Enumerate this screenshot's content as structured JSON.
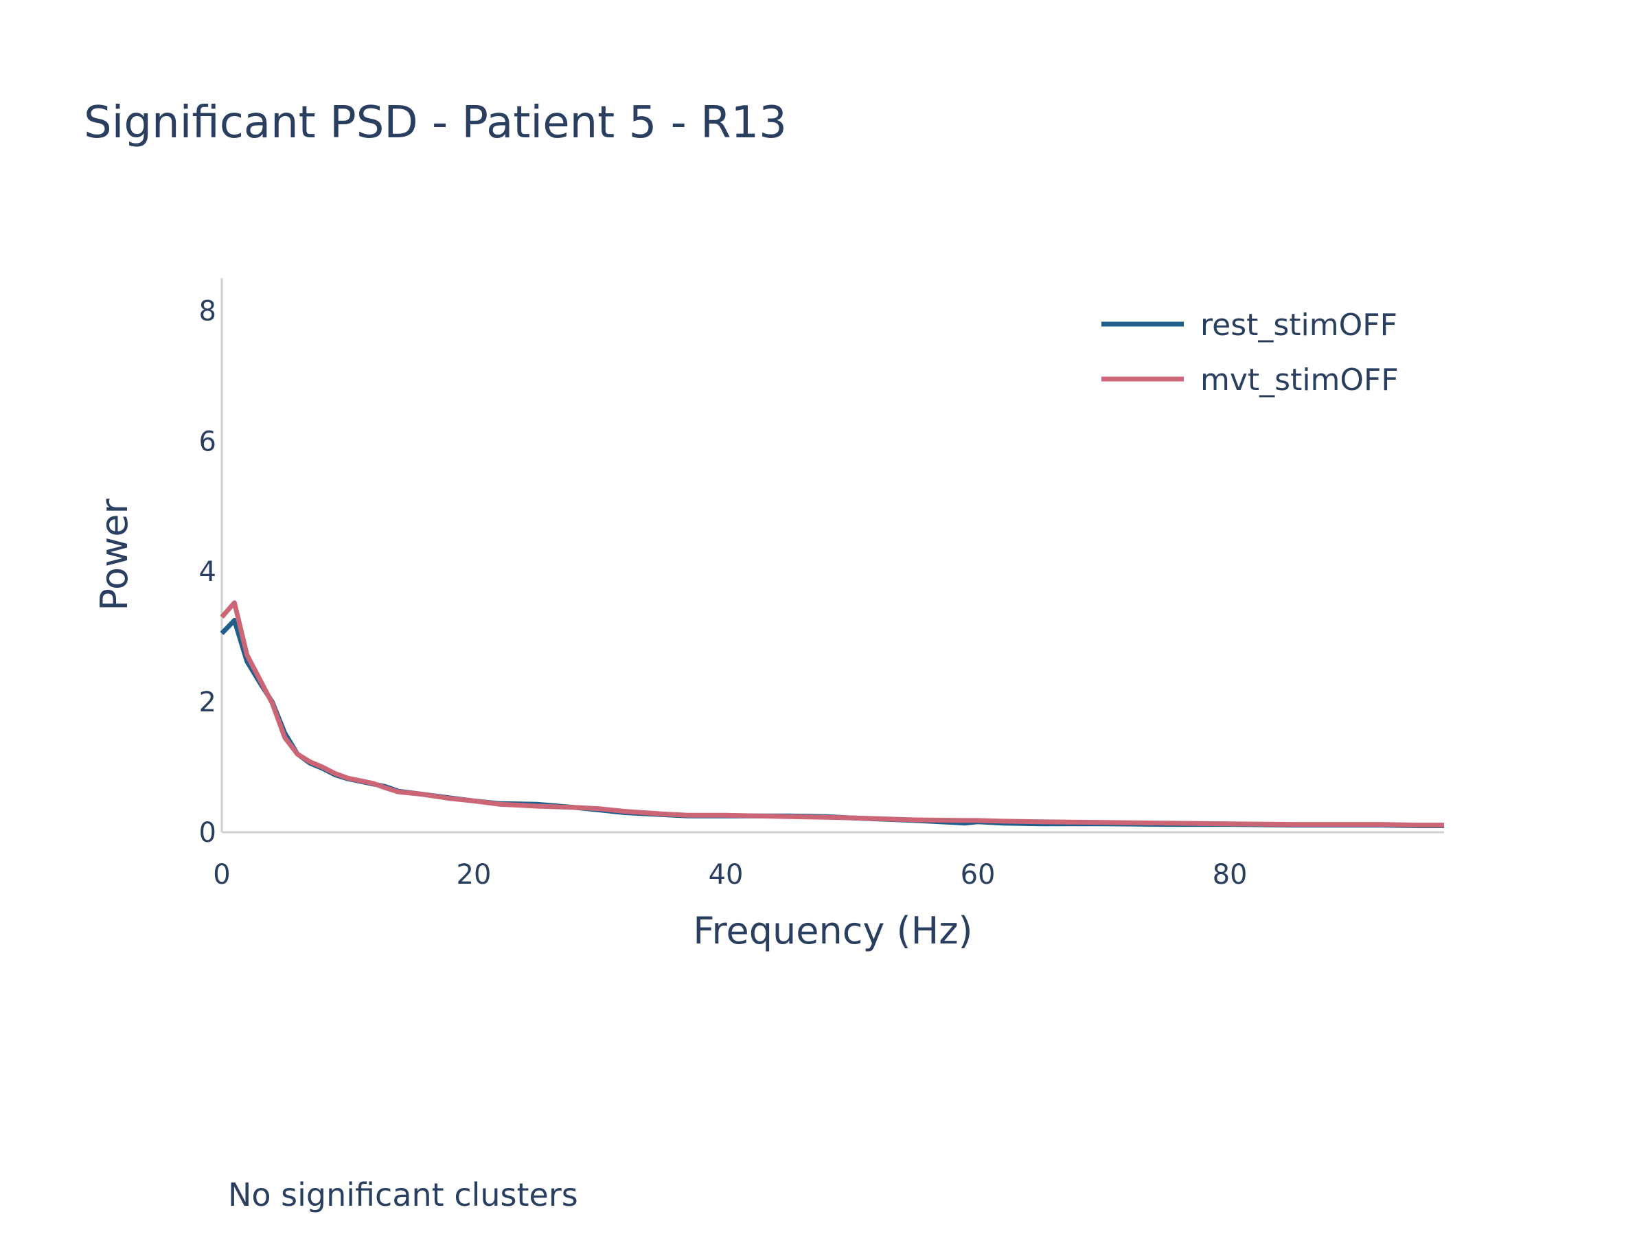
{
  "chart_data": {
    "type": "line",
    "title": "Significant PSD - Patient 5 - R13",
    "xlabel": "Frequency (Hz)",
    "ylabel": "Power",
    "xlim": [
      0,
      97
    ],
    "ylim": [
      0,
      8.5
    ],
    "x_ticks": [
      0,
      20,
      40,
      60,
      80
    ],
    "y_ticks": [
      0,
      2,
      4,
      6,
      8
    ],
    "grid": false,
    "legend_position": "top-right",
    "annotation": "No significant clusters",
    "x": [
      0,
      1,
      2,
      3,
      4,
      5,
      6,
      7,
      8,
      9,
      10,
      12,
      13,
      14,
      16,
      18,
      20,
      22,
      25,
      28,
      30,
      32,
      35,
      37,
      40,
      45,
      48,
      50,
      55,
      59,
      60,
      62,
      65,
      70,
      75,
      80,
      85,
      90,
      92,
      95,
      97
    ],
    "series": [
      {
        "name": "rest_stimOFF",
        "color": "#1f5f8b",
        "values": [
          3.05,
          3.25,
          2.62,
          2.3,
          2.0,
          1.52,
          1.2,
          1.06,
          0.98,
          0.88,
          0.82,
          0.74,
          0.7,
          0.63,
          0.58,
          0.53,
          0.48,
          0.44,
          0.43,
          0.38,
          0.34,
          0.3,
          0.27,
          0.25,
          0.25,
          0.25,
          0.24,
          0.22,
          0.18,
          0.14,
          0.16,
          0.14,
          0.13,
          0.13,
          0.12,
          0.12,
          0.11,
          0.11,
          0.11,
          0.1,
          0.1
        ]
      },
      {
        "name": "mvt_stimOFF",
        "color": "#cc6677",
        "values": [
          3.3,
          3.52,
          2.72,
          2.35,
          1.98,
          1.45,
          1.2,
          1.08,
          1.0,
          0.9,
          0.83,
          0.75,
          0.68,
          0.62,
          0.58,
          0.52,
          0.48,
          0.43,
          0.4,
          0.38,
          0.36,
          0.32,
          0.28,
          0.26,
          0.26,
          0.24,
          0.23,
          0.22,
          0.19,
          0.18,
          0.18,
          0.17,
          0.16,
          0.15,
          0.14,
          0.13,
          0.12,
          0.12,
          0.12,
          0.11,
          0.11
        ]
      }
    ]
  }
}
